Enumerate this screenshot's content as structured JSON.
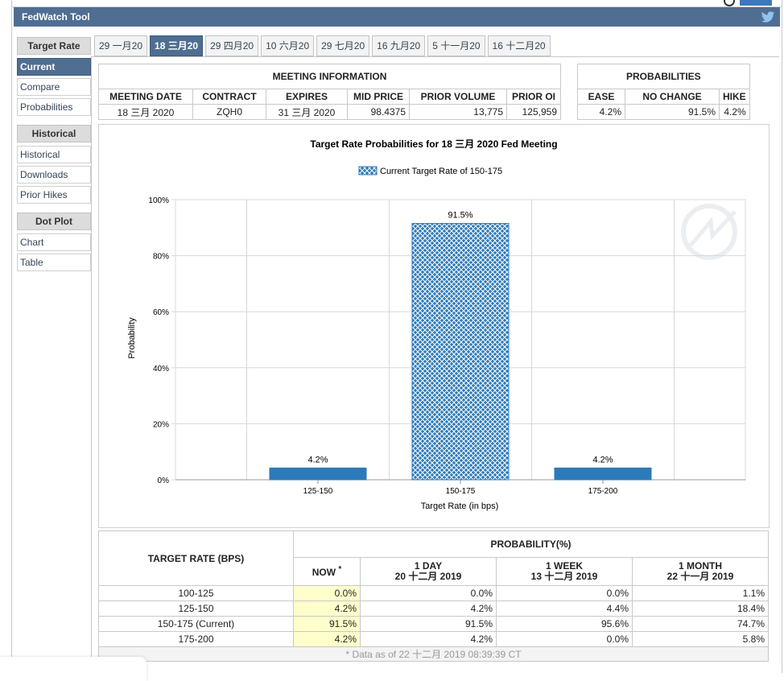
{
  "app": {
    "title": "FedWatch Tool"
  },
  "sidebar": {
    "sections": [
      {
        "title": "Target Rate",
        "items": [
          {
            "label": "Current",
            "active": true
          },
          {
            "label": "Compare"
          },
          {
            "label": "Probabilities"
          }
        ]
      },
      {
        "title": "Historical",
        "items": [
          {
            "label": "Historical"
          },
          {
            "label": "Downloads"
          },
          {
            "label": "Prior Hikes"
          }
        ]
      },
      {
        "title": "Dot Plot",
        "items": [
          {
            "label": "Chart"
          },
          {
            "label": "Table"
          }
        ]
      }
    ]
  },
  "tabs": [
    {
      "label": "29 一月20"
    },
    {
      "label": "18 三月20",
      "active": true
    },
    {
      "label": "29 四月20"
    },
    {
      "label": "10 六月20"
    },
    {
      "label": "29 七月20"
    },
    {
      "label": "16 九月20"
    },
    {
      "label": "5 十一月20"
    },
    {
      "label": "16 十二月20"
    }
  ],
  "meeting": {
    "header": "MEETING INFORMATION",
    "columns": [
      "MEETING DATE",
      "CONTRACT",
      "EXPIRES",
      "MID PRICE",
      "PRIOR VOLUME",
      "PRIOR OI"
    ],
    "row": [
      "18 三月 2020",
      "ZQH0",
      "31 三月 2020",
      "98.4375",
      "13,775",
      "125,959"
    ]
  },
  "probabilities": {
    "header": "PROBABILITIES",
    "columns": [
      "EASE",
      "NO CHANGE",
      "HIKE"
    ],
    "row": [
      "4.2%",
      "91.5%",
      "4.2%"
    ]
  },
  "chart_data": {
    "type": "bar",
    "title": "Target Rate Probabilities for 18 三月 2020 Fed Meeting",
    "legend": "Current Target Rate of 150-175",
    "categories": [
      "125-150",
      "150-175",
      "175-200"
    ],
    "values": [
      4.2,
      91.5,
      4.2
    ],
    "data_labels": [
      "4.2%",
      "91.5%",
      "4.2%"
    ],
    "xlabel": "Target Rate (in bps)",
    "ylabel": "Probability",
    "ylim": [
      0,
      100
    ],
    "yticks": [
      "0%",
      "20%",
      "40%",
      "60%",
      "80%",
      "100%"
    ],
    "highlight_index": 1,
    "colors": {
      "bar": "#2d7ab8",
      "grid": "#d8d8d8"
    }
  },
  "bottom": {
    "target_header": "TARGET RATE (BPS)",
    "prob_header": "PROBABILITY(%)",
    "cols": [
      {
        "l1": "NOW",
        "l2": ""
      },
      {
        "l1": "1 DAY",
        "l2": "20 十二月 2019"
      },
      {
        "l1": "1 WEEK",
        "l2": "13 十二月 2019"
      },
      {
        "l1": "1 MONTH",
        "l2": "22 十一月 2019"
      }
    ],
    "now_mark": "*",
    "rows": [
      {
        "label": "100-125",
        "vals": [
          "0.0%",
          "0.0%",
          "0.0%",
          "1.1%"
        ]
      },
      {
        "label": "125-150",
        "vals": [
          "4.2%",
          "4.2%",
          "4.4%",
          "18.4%"
        ]
      },
      {
        "label": "150-175 (Current)",
        "vals": [
          "91.5%",
          "91.5%",
          "95.6%",
          "74.7%"
        ]
      },
      {
        "label": "175-200",
        "vals": [
          "4.2%",
          "4.2%",
          "0.0%",
          "5.8%"
        ]
      }
    ],
    "footnote": "* Data as of 22 十二月 2019 08:39:39 CT"
  }
}
